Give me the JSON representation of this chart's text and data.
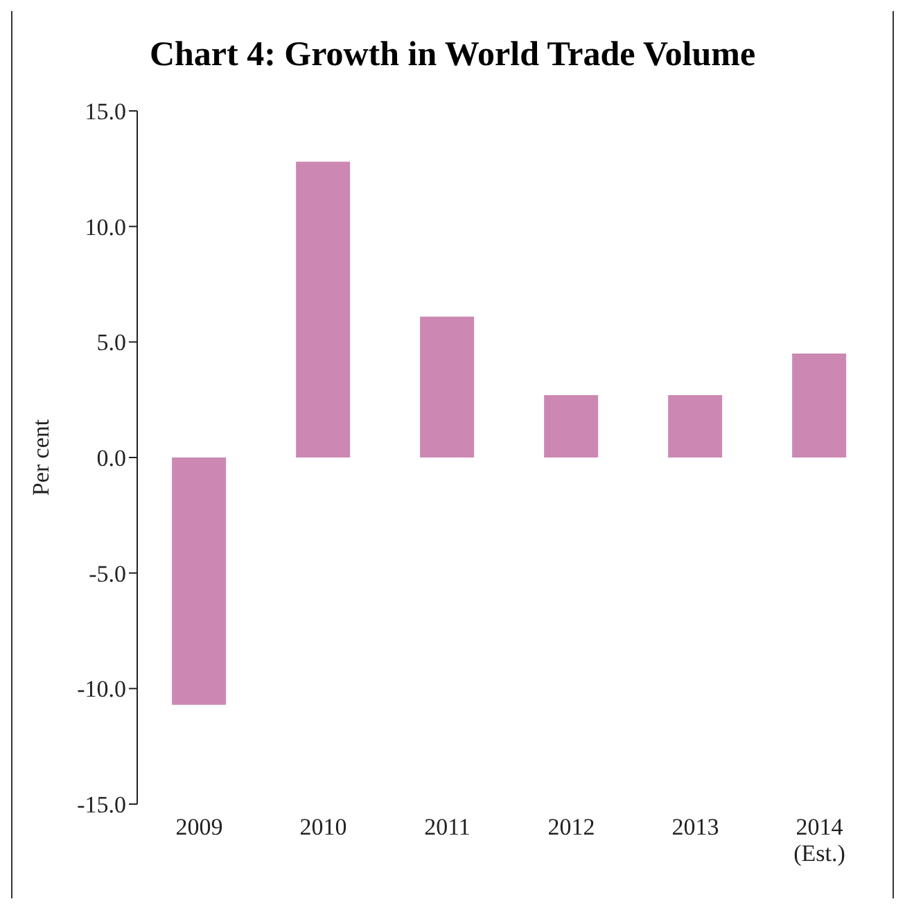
{
  "chart_data": {
    "type": "bar",
    "title": "Chart 4: Growth in World Trade Volume",
    "ylabel": "Per cent",
    "categories": [
      "2009",
      "2010",
      "2011",
      "2012",
      "2013",
      "2014 (Est.)"
    ],
    "values": [
      -10.7,
      12.8,
      6.1,
      2.7,
      2.7,
      4.5
    ],
    "color": "#cc88b3",
    "ylim": [
      -15,
      15
    ],
    "yticks": [
      {
        "value": -15,
        "label": "-15.0"
      },
      {
        "value": -10,
        "label": "-10.0"
      },
      {
        "value": -5,
        "label": "-5.0"
      },
      {
        "value": 0,
        "label": "0.0"
      },
      {
        "value": 5,
        "label": "5.0"
      },
      {
        "value": 10,
        "label": "10.0"
      },
      {
        "value": 15,
        "label": "15.0"
      }
    ],
    "grid": false,
    "legend": false
  }
}
